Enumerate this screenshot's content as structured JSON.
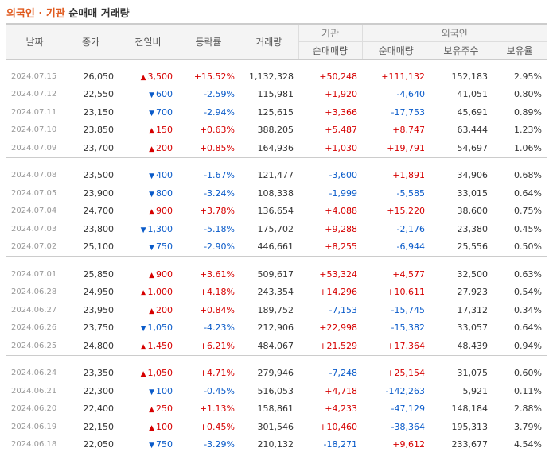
{
  "title": {
    "part1": "외국인 · 기관",
    "part2": " 순매매 거래량"
  },
  "headers": {
    "date": "날짜",
    "close": "종가",
    "change": "전일비",
    "rate": "등락률",
    "volume": "거래량",
    "inst": "기관",
    "foreign": "외국인",
    "inst_net": "순매매량",
    "for_net": "순매매량",
    "for_hold": "보유주수",
    "for_ratio": "보유율"
  },
  "colors": {
    "up": "#d60000",
    "down": "#0a5bc9",
    "title_accent": "#e05a1e"
  },
  "groups": [
    [
      {
        "date": "2024.07.15",
        "close": "26,050",
        "dir": "up",
        "change": "3,500",
        "rate": "+15.52%",
        "volume": "1,132,328",
        "inst": "+50,248",
        "foreign": "+111,132",
        "hold": "152,183",
        "ratio": "2.95%"
      },
      {
        "date": "2024.07.12",
        "close": "22,550",
        "dir": "down",
        "change": "600",
        "rate": "-2.59%",
        "volume": "115,981",
        "inst": "+1,920",
        "foreign": "-4,640",
        "hold": "41,051",
        "ratio": "0.80%"
      },
      {
        "date": "2024.07.11",
        "close": "23,150",
        "dir": "down",
        "change": "700",
        "rate": "-2.94%",
        "volume": "125,615",
        "inst": "+3,366",
        "foreign": "-17,753",
        "hold": "45,691",
        "ratio": "0.89%"
      },
      {
        "date": "2024.07.10",
        "close": "23,850",
        "dir": "up",
        "change": "150",
        "rate": "+0.63%",
        "volume": "388,205",
        "inst": "+5,487",
        "foreign": "+8,747",
        "hold": "63,444",
        "ratio": "1.23%"
      },
      {
        "date": "2024.07.09",
        "close": "23,700",
        "dir": "up",
        "change": "200",
        "rate": "+0.85%",
        "volume": "164,936",
        "inst": "+1,030",
        "foreign": "+19,791",
        "hold": "54,697",
        "ratio": "1.06%"
      }
    ],
    [
      {
        "date": "2024.07.08",
        "close": "23,500",
        "dir": "down",
        "change": "400",
        "rate": "-1.67%",
        "volume": "121,477",
        "inst": "-3,600",
        "foreign": "+1,891",
        "hold": "34,906",
        "ratio": "0.68%"
      },
      {
        "date": "2024.07.05",
        "close": "23,900",
        "dir": "down",
        "change": "800",
        "rate": "-3.24%",
        "volume": "108,338",
        "inst": "-1,999",
        "foreign": "-5,585",
        "hold": "33,015",
        "ratio": "0.64%"
      },
      {
        "date": "2024.07.04",
        "close": "24,700",
        "dir": "up",
        "change": "900",
        "rate": "+3.78%",
        "volume": "136,654",
        "inst": "+4,088",
        "foreign": "+15,220",
        "hold": "38,600",
        "ratio": "0.75%"
      },
      {
        "date": "2024.07.03",
        "close": "23,800",
        "dir": "down",
        "change": "1,300",
        "rate": "-5.18%",
        "volume": "175,702",
        "inst": "+9,288",
        "foreign": "-2,176",
        "hold": "23,380",
        "ratio": "0.45%"
      },
      {
        "date": "2024.07.02",
        "close": "25,100",
        "dir": "down",
        "change": "750",
        "rate": "-2.90%",
        "volume": "446,661",
        "inst": "+8,255",
        "foreign": "-6,944",
        "hold": "25,556",
        "ratio": "0.50%"
      }
    ],
    [
      {
        "date": "2024.07.01",
        "close": "25,850",
        "dir": "up",
        "change": "900",
        "rate": "+3.61%",
        "volume": "509,617",
        "inst": "+53,324",
        "foreign": "+4,577",
        "hold": "32,500",
        "ratio": "0.63%"
      },
      {
        "date": "2024.06.28",
        "close": "24,950",
        "dir": "up",
        "change": "1,000",
        "rate": "+4.18%",
        "volume": "243,354",
        "inst": "+14,296",
        "foreign": "+10,611",
        "hold": "27,923",
        "ratio": "0.54%"
      },
      {
        "date": "2024.06.27",
        "close": "23,950",
        "dir": "up",
        "change": "200",
        "rate": "+0.84%",
        "volume": "189,752",
        "inst": "-7,153",
        "foreign": "-15,745",
        "hold": "17,312",
        "ratio": "0.34%"
      },
      {
        "date": "2024.06.26",
        "close": "23,750",
        "dir": "down",
        "change": "1,050",
        "rate": "-4.23%",
        "volume": "212,906",
        "inst": "+22,998",
        "foreign": "-15,382",
        "hold": "33,057",
        "ratio": "0.64%"
      },
      {
        "date": "2024.06.25",
        "close": "24,800",
        "dir": "up",
        "change": "1,450",
        "rate": "+6.21%",
        "volume": "484,067",
        "inst": "+21,529",
        "foreign": "+17,364",
        "hold": "48,439",
        "ratio": "0.94%"
      }
    ],
    [
      {
        "date": "2024.06.24",
        "close": "23,350",
        "dir": "up",
        "change": "1,050",
        "rate": "+4.71%",
        "volume": "279,946",
        "inst": "-7,248",
        "foreign": "+25,154",
        "hold": "31,075",
        "ratio": "0.60%"
      },
      {
        "date": "2024.06.21",
        "close": "22,300",
        "dir": "down",
        "change": "100",
        "rate": "-0.45%",
        "volume": "516,053",
        "inst": "+4,718",
        "foreign": "-142,263",
        "hold": "5,921",
        "ratio": "0.11%"
      },
      {
        "date": "2024.06.20",
        "close": "22,400",
        "dir": "up",
        "change": "250",
        "rate": "+1.13%",
        "volume": "158,861",
        "inst": "+4,233",
        "foreign": "-47,129",
        "hold": "148,184",
        "ratio": "2.88%"
      },
      {
        "date": "2024.06.19",
        "close": "22,150",
        "dir": "up",
        "change": "100",
        "rate": "+0.45%",
        "volume": "301,546",
        "inst": "+10,460",
        "foreign": "-38,364",
        "hold": "195,313",
        "ratio": "3.79%"
      },
      {
        "date": "2024.06.18",
        "close": "22,050",
        "dir": "down",
        "change": "750",
        "rate": "-3.29%",
        "volume": "210,132",
        "inst": "-18,271",
        "foreign": "+9,612",
        "hold": "233,677",
        "ratio": "4.54%"
      }
    ]
  ]
}
